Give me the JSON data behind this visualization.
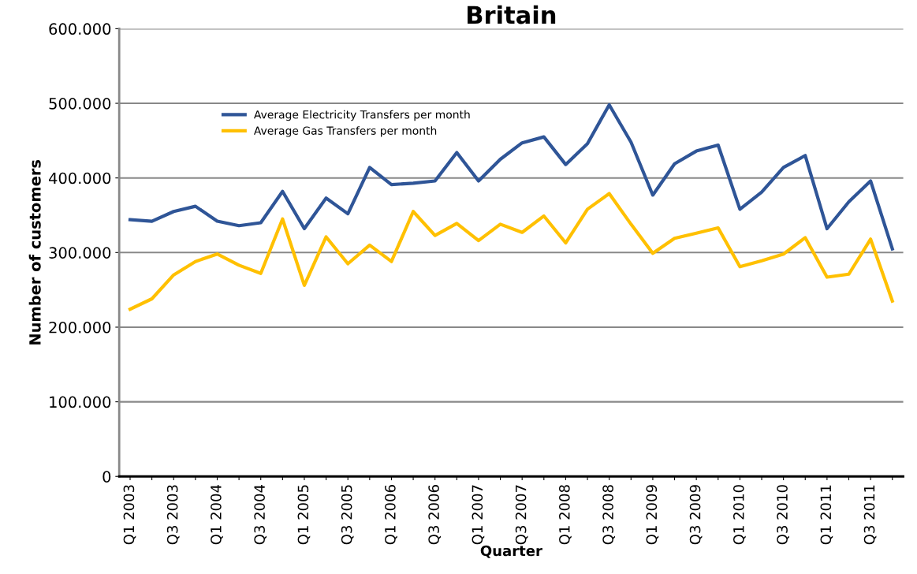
{
  "chart_data": {
    "type": "line",
    "title": "Britain",
    "xlabel": "Quarter",
    "ylabel": "Number of customers",
    "categories": [
      "Q1 2003",
      null,
      "Q3 2003",
      null,
      "Q1 2004",
      null,
      "Q3 2004",
      null,
      "Q1 2005",
      null,
      "Q3 2005",
      null,
      "Q1 2006",
      null,
      "Q3 2006",
      null,
      "Q1 2007",
      null,
      "Q3 2007",
      null,
      "Q1 2008",
      null,
      "Q3 2008",
      null,
      "Q1 2009",
      null,
      "Q3 2009",
      null,
      "Q1 2010",
      null,
      "Q3 2010",
      null,
      "Q1 2011",
      null,
      "Q3 2011",
      null
    ],
    "series": [
      {
        "name": "Average Electricity Transfers per month",
        "color": "#2f5597",
        "values": [
          344000,
          342000,
          355000,
          362000,
          342000,
          336000,
          340000,
          382000,
          332000,
          373000,
          352000,
          414000,
          391000,
          393000,
          396000,
          434000,
          396000,
          425000,
          447000,
          455000,
          418000,
          446000,
          498000,
          448000,
          377000,
          419000,
          436000,
          444000,
          358000,
          381000,
          414000,
          430000,
          332000,
          368000,
          396000,
          305000
        ]
      },
      {
        "name": "Average Gas Transfers per month",
        "color": "#ffc000",
        "values": [
          224000,
          238000,
          270000,
          288000,
          298000,
          283000,
          272000,
          345000,
          256000,
          321000,
          285000,
          310000,
          288000,
          355000,
          323000,
          339000,
          316000,
          338000,
          327000,
          349000,
          313000,
          358000,
          379000,
          338000,
          299000,
          319000,
          326000,
          333000,
          281000,
          289000,
          298000,
          320000,
          267000,
          271000,
          318000,
          235000
        ]
      }
    ],
    "ylim": [
      0,
      600000
    ],
    "yticks": [
      {
        "value": 0,
        "label": "0"
      },
      {
        "value": 100000,
        "label": "100.000"
      },
      {
        "value": 200000,
        "label": "200.000"
      },
      {
        "value": 300000,
        "label": "300.000"
      },
      {
        "value": 400000,
        "label": "400.000"
      },
      {
        "value": 500000,
        "label": "500.000"
      },
      {
        "value": 600000,
        "label": "600.000"
      }
    ],
    "grid": "y",
    "legend": "top left",
    "marker": "none",
    "line_style": "solid"
  }
}
